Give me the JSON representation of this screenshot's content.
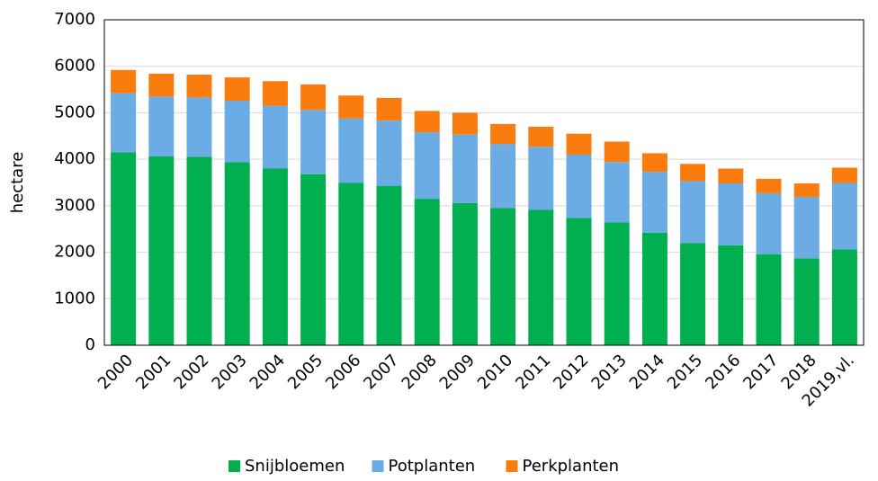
{
  "chart_data": {
    "type": "stacked_bar",
    "y_label": "hectare",
    "categories": [
      "2000",
      "2001",
      "2002",
      "2003",
      "2004",
      "2005",
      "2006",
      "2007",
      "2008",
      "2009",
      "2010",
      "2011",
      "2012",
      "2013",
      "2014",
      "2015",
      "2016",
      "2017",
      "2018",
      "2019,vl."
    ],
    "series": [
      {
        "name": "Snijbloemen",
        "color": "#00b050",
        "values": [
          4150,
          4060,
          4050,
          3940,
          3800,
          3680,
          3490,
          3430,
          3150,
          3060,
          2950,
          2910,
          2740,
          2640,
          2420,
          2200,
          2150,
          1960,
          1870,
          2060
        ]
      },
      {
        "name": "Potplanten",
        "color": "#6cace4",
        "values": [
          1270,
          1290,
          1280,
          1320,
          1350,
          1380,
          1390,
          1400,
          1430,
          1470,
          1380,
          1360,
          1360,
          1300,
          1310,
          1330,
          1330,
          1310,
          1320,
          1430
        ]
      },
      {
        "name": "Perkplanten",
        "color": "#fa7c0f",
        "values": [
          500,
          490,
          490,
          500,
          530,
          550,
          490,
          490,
          460,
          470,
          430,
          430,
          450,
          440,
          400,
          370,
          320,
          310,
          290,
          330
        ]
      }
    ],
    "ylim": [
      0,
      7000
    ],
    "yticks": [
      0,
      1000,
      2000,
      3000,
      4000,
      5000,
      6000,
      7000
    ],
    "grid": true,
    "legend": "bottom"
  }
}
